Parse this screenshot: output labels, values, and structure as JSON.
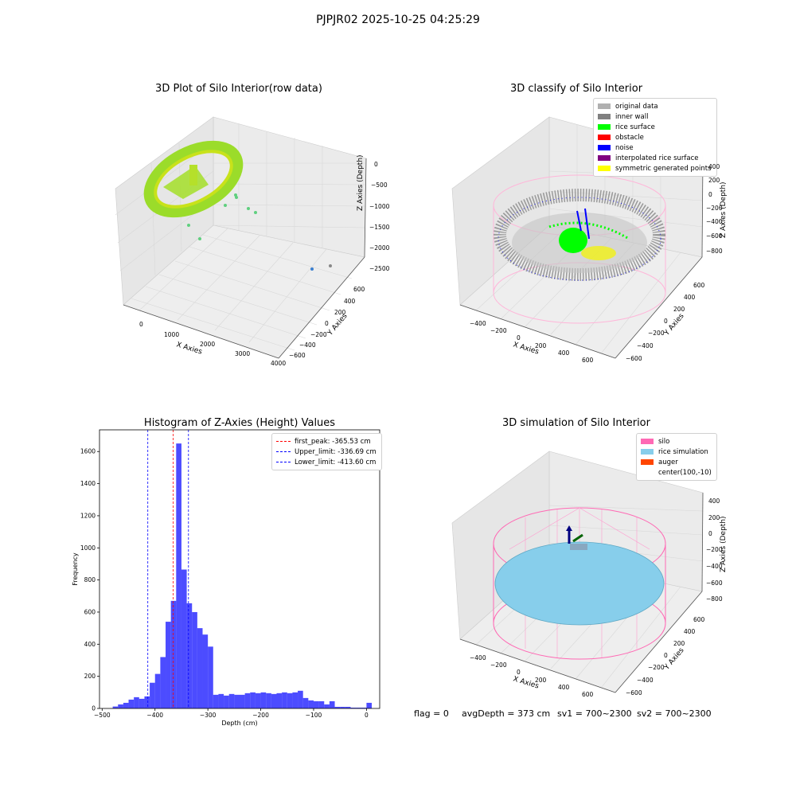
{
  "suptitle": "PJPJR02 2025-10-25 04:25:29",
  "panels": {
    "raw": {
      "title": "3D Plot of Silo Interior(row data)",
      "xlabel": "X Axies",
      "ylabel": "Y Axies",
      "zlabel": "Z Axies (Depth)",
      "xticks": [
        "0",
        "1000",
        "2000",
        "3000",
        "4000"
      ],
      "yticks": [
        "600",
        "400",
        "200",
        "0",
        "−200",
        "−400",
        "−600"
      ],
      "zticks": [
        "0",
        "−500",
        "−1000",
        "−1500",
        "−2000",
        "−2500"
      ]
    },
    "classify": {
      "title": "3D classify of Silo Interior",
      "xlabel": "X Axies",
      "ylabel": "Y Axies",
      "zlabel": "Z Axies (Depth)",
      "xticks": [
        "−400",
        "−200",
        "0",
        "200",
        "400",
        "600"
      ],
      "yticks": [
        "600",
        "400",
        "200",
        "0",
        "−200",
        "−400",
        "−600"
      ],
      "zticks": [
        "400",
        "200",
        "0",
        "−200",
        "−400",
        "−600",
        "−800"
      ],
      "legend": [
        {
          "label": "original data",
          "color": "#b0b0b0"
        },
        {
          "label": "inner wall",
          "color": "#808080"
        },
        {
          "label": "rice surface",
          "color": "#00ff00"
        },
        {
          "label": "obstacle",
          "color": "#ff0000"
        },
        {
          "label": "noise",
          "color": "#0000ff"
        },
        {
          "label": "interpolated rice surface",
          "color": "#800080"
        },
        {
          "label": "symmetric generated points",
          "color": "#ffff00"
        }
      ]
    },
    "simulation": {
      "title": "3D simulation of Silo Interior",
      "xlabel": "X Axies",
      "ylabel": "Y Axies",
      "zlabel": "Z Axies (Depth)",
      "xticks": [
        "−400",
        "−200",
        "0",
        "200",
        "400",
        "600"
      ],
      "yticks": [
        "600",
        "400",
        "200",
        "0",
        "−200",
        "−400",
        "−600"
      ],
      "zticks": [
        "400",
        "200",
        "0",
        "−200",
        "−400",
        "−600",
        "−800"
      ],
      "legend": [
        {
          "label": "silo",
          "color": "#ff69b4"
        },
        {
          "label": "rice simulation",
          "color": "#87ceeb"
        },
        {
          "label": "auger",
          "color": "#ff4500"
        },
        {
          "label": "center(100,-10)",
          "color": ""
        }
      ]
    }
  },
  "status": {
    "flag": "flag = 0",
    "avg": "avgDepth = 373 cm",
    "sv1": "sv1 = 700~2300",
    "sv2": "sv2 = 700~2300"
  },
  "chart_data": [
    {
      "type": "bar",
      "title": "Histogram of Z-Axies (Height) Values",
      "xlabel": "Depth (cm)",
      "ylabel": "Frequency",
      "xlim": [
        -505,
        25
      ],
      "ylim": [
        0,
        1735
      ],
      "xticks": [
        -500,
        -400,
        -300,
        -200,
        -100,
        0
      ],
      "yticks": [
        0,
        200,
        400,
        600,
        800,
        1000,
        1200,
        1400,
        1600
      ],
      "bar_color": "#0000ff",
      "bin_edges_start": -480,
      "bin_width": 10,
      "bin_edges": [
        -480,
        -470,
        -460,
        -450,
        -440,
        -430,
        -420,
        -410,
        -400,
        -390,
        -380,
        -370,
        -360,
        -350,
        -340,
        -330,
        -320,
        -310,
        -300,
        -290,
        -280,
        -270,
        -260,
        -250,
        -240,
        -230,
        -220,
        -210,
        -200,
        -190,
        -180,
        -170,
        -160,
        -150,
        -140,
        -130,
        -120,
        -110,
        -100,
        -90,
        -80,
        -70,
        -60,
        -50,
        -40,
        -30,
        -20,
        -10,
        0,
        10
      ],
      "counts": [
        12,
        25,
        35,
        55,
        70,
        60,
        75,
        160,
        215,
        320,
        540,
        670,
        1650,
        865,
        655,
        600,
        500,
        460,
        385,
        85,
        90,
        80,
        90,
        85,
        85,
        95,
        100,
        95,
        100,
        95,
        90,
        95,
        100,
        95,
        100,
        110,
        65,
        50,
        45,
        45,
        25,
        45,
        10,
        10,
        10,
        5,
        5,
        5,
        35
      ],
      "lines": [
        {
          "label": "first_peak: -365.53 cm",
          "x": -365.53,
          "color": "#ff0000"
        },
        {
          "label": "Upper_limit: -336.69 cm",
          "x": -336.69,
          "color": "#0000ff"
        },
        {
          "label": "Lower_limit: -413.60 cm",
          "x": -413.6,
          "color": "#0000ff"
        }
      ]
    }
  ]
}
